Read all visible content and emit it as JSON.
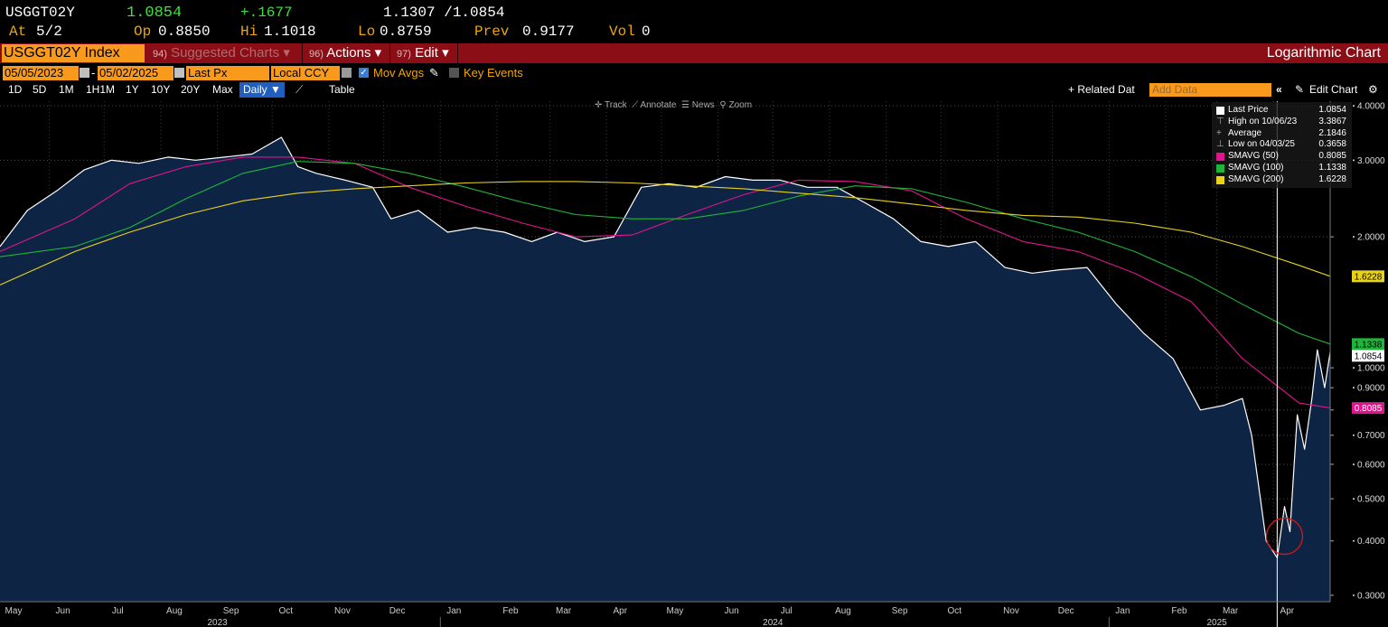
{
  "quote": {
    "ticker": "USGGT02Y",
    "last": "1.0854",
    "change": "+.1677",
    "bid_ask": "1.1307 /1.0854",
    "at_label": "At",
    "at_date": "5/2",
    "open_label": "Op",
    "open": "0.8850",
    "high_label": "Hi",
    "high": "1.1018",
    "low_label": "Lo",
    "low": "0.8759",
    "prev_label": "Prev",
    "prev": "0.9177",
    "vol_label": "Vol",
    "vol": "0"
  },
  "toolbar": {
    "security": "USGGT02Y Index",
    "suggested_num": "94)",
    "suggested": "Suggested Charts",
    "actions_num": "96)",
    "actions": "Actions",
    "edit_num": "97)",
    "edit": "Edit",
    "chart_title": "Logarithmic Chart"
  },
  "controls": {
    "start_date": "05/05/2023",
    "end_date": "05/02/2025",
    "price_field": "Last Px",
    "currency": "Local CCY",
    "mov_avgs": "Mov Avgs",
    "key_events": "Key Events"
  },
  "ranges": {
    "items": [
      "1D",
      "5D",
      "1M",
      "1H1M",
      "1Y",
      "10Y",
      "20Y",
      "Max"
    ],
    "period": "Daily",
    "table": "Table",
    "related": "+ Related Dat",
    "add_data_placeholder": "Add Data",
    "edit_chart": "Edit Chart"
  },
  "chart_tools": {
    "track": "Track",
    "annotate": "Annotate",
    "news": "News",
    "zoom": "Zoom"
  },
  "legend": [
    {
      "label": "Last Price",
      "value": "1.0854",
      "color": "#ffffff",
      "kind": "box"
    },
    {
      "label": "High on 10/06/23",
      "value": "3.3867",
      "kind": "high"
    },
    {
      "label": "Average",
      "value": "2.1846",
      "kind": "avg"
    },
    {
      "label": "Low on 04/03/25",
      "value": "0.3658",
      "kind": "low"
    },
    {
      "label": "SMAVG (50)",
      "value": "0.8085",
      "color": "#e0148c",
      "kind": "box"
    },
    {
      "label": "SMAVG (100)",
      "value": "1.1338",
      "color": "#1fb53a",
      "kind": "box"
    },
    {
      "label": "SMAVG (200)",
      "value": "1.6228",
      "color": "#e8d21a",
      "kind": "box"
    }
  ],
  "chart_data": {
    "type": "line",
    "scale": "log",
    "ylim": [
      0.29,
      4.1
    ],
    "y_ticks": [
      4.0,
      3.0,
      2.0,
      1.0,
      0.9,
      0.8,
      0.7,
      0.6,
      0.5,
      0.4,
      0.3
    ],
    "y_tick_labels": [
      "4.0000",
      "3.0000",
      "2.0000",
      "1.0000",
      "0.9000",
      "0.8000",
      "0.7000",
      "0.6000",
      "0.5000",
      "0.4000",
      "0.3000"
    ],
    "x_range": [
      "2023-05-05",
      "2025-05-02"
    ],
    "month_ticks": [
      "2023-05-01",
      "2023-06-01",
      "2023-07-01",
      "2023-08-01",
      "2023-09-01",
      "2023-10-01",
      "2023-11-01",
      "2023-12-01",
      "2024-01-01",
      "2024-02-01",
      "2024-03-01",
      "2024-04-01",
      "2024-05-01",
      "2024-06-01",
      "2024-07-01",
      "2024-08-01",
      "2024-09-01",
      "2024-10-01",
      "2024-11-01",
      "2024-12-01",
      "2025-01-01",
      "2025-02-01",
      "2025-03-01",
      "2025-04-01"
    ],
    "month_labels": [
      "May",
      "Jun",
      "Jul",
      "Aug",
      "Sep",
      "Oct",
      "Nov",
      "Dec",
      "Jan",
      "Feb",
      "Mar",
      "Apr",
      "May",
      "Jun",
      "Jul",
      "Aug",
      "Sep",
      "Oct",
      "Nov",
      "Dec",
      "Jan",
      "Feb",
      "Mar",
      "Apr"
    ],
    "year_labels": [
      {
        "x": "2023-09-01",
        "label": "2023"
      },
      {
        "x": "2024-07-01",
        "label": "2024"
      },
      {
        "x": "2025-03-01",
        "label": "2025"
      }
    ],
    "year_dividers": [
      "2024-01-01",
      "2025-01-01"
    ],
    "grid": true,
    "fill_color": "#0e2444",
    "series": [
      {
        "name": "Last Price",
        "color": "#ffffff",
        "fill": true,
        "x": [
          "2023-05-05",
          "2023-05-20",
          "2023-06-05",
          "2023-06-20",
          "2023-07-05",
          "2023-07-20",
          "2023-08-05",
          "2023-08-20",
          "2023-09-05",
          "2023-09-20",
          "2023-10-06",
          "2023-10-15",
          "2023-10-25",
          "2023-11-10",
          "2023-11-25",
          "2023-12-05",
          "2023-12-20",
          "2024-01-05",
          "2024-01-20",
          "2024-02-05",
          "2024-02-20",
          "2024-03-05",
          "2024-03-20",
          "2024-04-05",
          "2024-04-20",
          "2024-05-05",
          "2024-05-20",
          "2024-06-05",
          "2024-06-20",
          "2024-07-05",
          "2024-07-20",
          "2024-08-05",
          "2024-08-20",
          "2024-09-05",
          "2024-09-20",
          "2024-10-05",
          "2024-10-20",
          "2024-11-05",
          "2024-11-20",
          "2024-12-05",
          "2024-12-20",
          "2025-01-05",
          "2025-01-20",
          "2025-02-05",
          "2025-02-20",
          "2025-03-05",
          "2025-03-15",
          "2025-03-20",
          "2025-03-28",
          "2025-04-03",
          "2025-04-07",
          "2025-04-10",
          "2025-04-14",
          "2025-04-18",
          "2025-04-22",
          "2025-04-25",
          "2025-04-29",
          "2025-05-02"
        ],
        "values": [
          1.9,
          2.3,
          2.55,
          2.85,
          3.0,
          2.95,
          3.05,
          3.0,
          3.05,
          3.1,
          3.3867,
          2.9,
          2.8,
          2.7,
          2.6,
          2.2,
          2.3,
          2.05,
          2.1,
          2.05,
          1.95,
          2.05,
          1.95,
          2.0,
          2.6,
          2.65,
          2.6,
          2.75,
          2.7,
          2.7,
          2.6,
          2.6,
          2.4,
          2.2,
          1.95,
          1.9,
          1.95,
          1.7,
          1.65,
          1.68,
          1.7,
          1.4,
          1.2,
          1.05,
          0.8,
          0.82,
          0.85,
          0.7,
          0.4,
          0.3658,
          0.48,
          0.42,
          0.78,
          0.65,
          0.85,
          1.1,
          0.9,
          1.0854
        ]
      },
      {
        "name": "SMAVG (50)",
        "color": "#e0148c",
        "x": [
          "2023-05-05",
          "2023-06-15",
          "2023-07-15",
          "2023-08-15",
          "2023-09-15",
          "2023-10-15",
          "2023-11-15",
          "2023-12-15",
          "2024-01-15",
          "2024-02-15",
          "2024-03-15",
          "2024-04-15",
          "2024-05-15",
          "2024-06-15",
          "2024-07-15",
          "2024-08-15",
          "2024-09-15",
          "2024-10-15",
          "2024-11-15",
          "2024-12-15",
          "2025-01-15",
          "2025-02-15",
          "2025-03-15",
          "2025-04-15",
          "2025-05-02"
        ],
        "values": [
          1.85,
          2.2,
          2.65,
          2.9,
          3.05,
          3.05,
          2.95,
          2.6,
          2.35,
          2.15,
          2.0,
          2.02,
          2.25,
          2.5,
          2.7,
          2.68,
          2.55,
          2.2,
          1.95,
          1.85,
          1.65,
          1.42,
          1.05,
          0.83,
          0.8085
        ]
      },
      {
        "name": "SMAVG (100)",
        "color": "#1fb53a",
        "x": [
          "2023-05-05",
          "2023-06-15",
          "2023-07-15",
          "2023-08-15",
          "2023-09-15",
          "2023-10-15",
          "2023-11-15",
          "2023-12-15",
          "2024-01-15",
          "2024-02-15",
          "2024-03-15",
          "2024-04-15",
          "2024-05-15",
          "2024-06-15",
          "2024-07-15",
          "2024-08-15",
          "2024-09-15",
          "2024-10-15",
          "2024-11-15",
          "2024-12-15",
          "2025-01-15",
          "2025-02-15",
          "2025-03-15",
          "2025-04-15",
          "2025-05-02"
        ],
        "values": [
          1.8,
          1.9,
          2.1,
          2.45,
          2.8,
          2.98,
          2.95,
          2.8,
          2.6,
          2.4,
          2.25,
          2.2,
          2.2,
          2.3,
          2.48,
          2.62,
          2.58,
          2.4,
          2.2,
          2.05,
          1.85,
          1.62,
          1.4,
          1.2,
          1.1338
        ]
      },
      {
        "name": "SMAVG (200)",
        "color": "#e8d21a",
        "x": [
          "2023-05-05",
          "2023-06-15",
          "2023-07-15",
          "2023-08-15",
          "2023-09-15",
          "2023-10-15",
          "2023-11-15",
          "2023-12-15",
          "2024-01-15",
          "2024-02-15",
          "2024-03-15",
          "2024-04-15",
          "2024-05-15",
          "2024-06-15",
          "2024-07-15",
          "2024-08-15",
          "2024-09-15",
          "2024-10-15",
          "2024-11-15",
          "2024-12-15",
          "2025-01-15",
          "2025-02-15",
          "2025-03-15",
          "2025-04-15",
          "2025-05-02"
        ],
        "values": [
          1.55,
          1.85,
          2.05,
          2.25,
          2.42,
          2.52,
          2.58,
          2.62,
          2.66,
          2.68,
          2.68,
          2.66,
          2.62,
          2.58,
          2.52,
          2.46,
          2.38,
          2.3,
          2.24,
          2.22,
          2.15,
          2.05,
          1.9,
          1.72,
          1.6228
        ]
      }
    ],
    "axis_value_tags": [
      {
        "value": 1.6228,
        "label": "1.6228",
        "bg": "#e8d21a",
        "fg": "#000000"
      },
      {
        "value": 1.1338,
        "label": "1.1338",
        "bg": "#1fb53a",
        "fg": "#000000"
      },
      {
        "value": 1.0854,
        "label": "1.0854",
        "bg": "#ffffff",
        "fg": "#000000"
      },
      {
        "value": 0.8085,
        "label": "0.8085",
        "bg": "#e0148c",
        "fg": "#ffffff"
      }
    ],
    "markers": [
      {
        "type": "vertical-line",
        "x": "2025-04-03"
      },
      {
        "type": "circle",
        "x": "2025-04-07",
        "y": 0.41,
        "color": "#d11a1a"
      }
    ]
  }
}
